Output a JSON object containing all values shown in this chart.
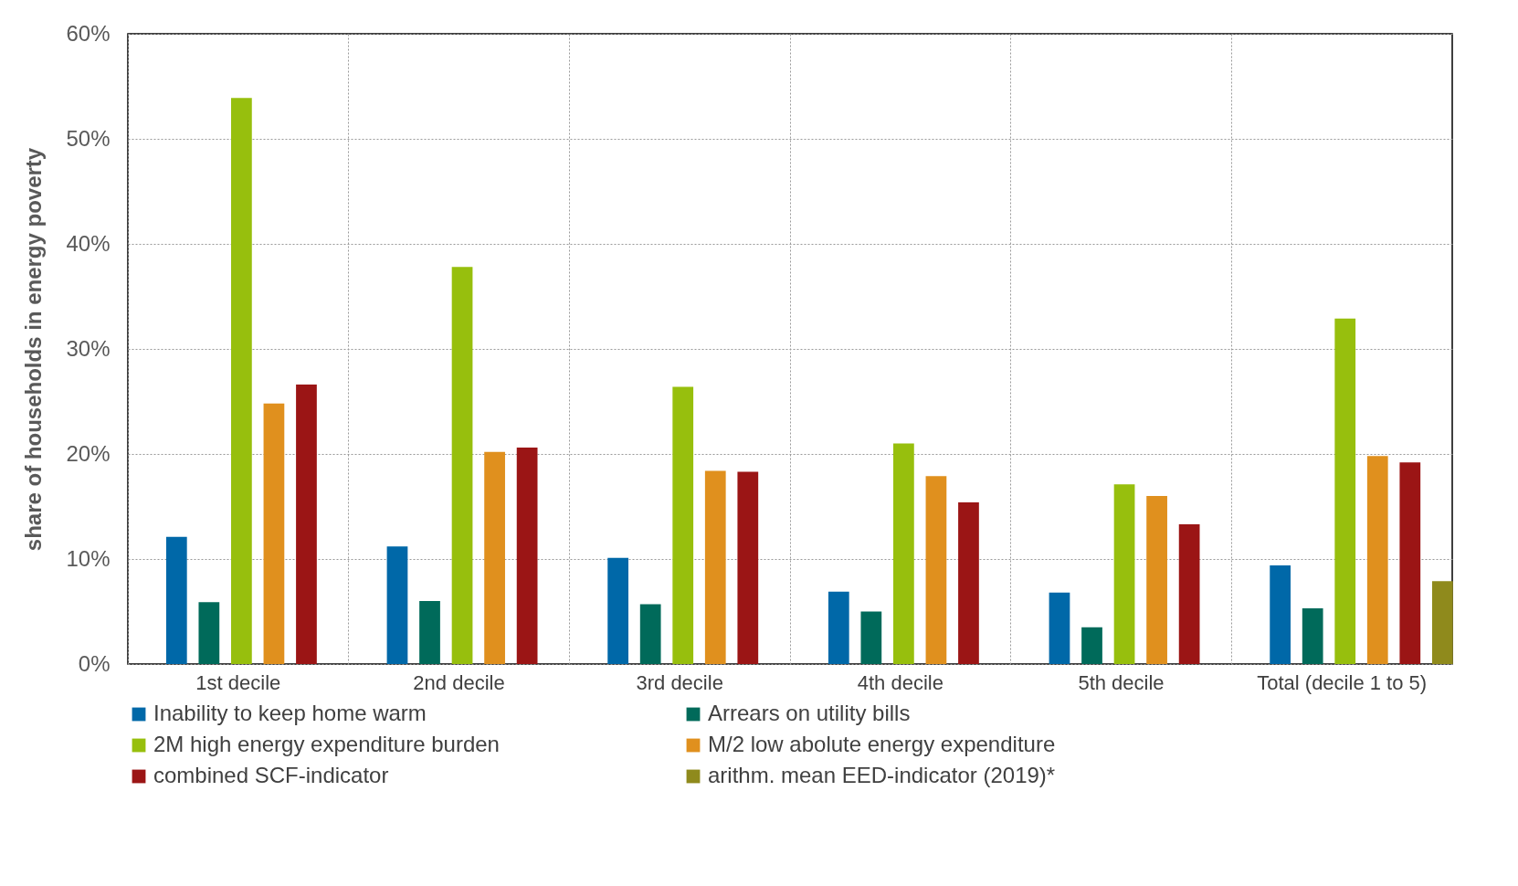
{
  "chart_data": {
    "type": "bar",
    "ylabel": "share of households in energy poverty",
    "categories": [
      "1st decile",
      "2nd decile",
      "3rd decile",
      "4th decile",
      "5th decile",
      "Total (decile 1 to 5)"
    ],
    "series": [
      {
        "name": "Inability to keep home warm",
        "color": "#0068a8",
        "values": [
          12.1,
          11.2,
          10.1,
          6.9,
          6.8,
          9.4
        ]
      },
      {
        "name": "Arrears on utility bills",
        "color": "#006a5a",
        "values": [
          5.9,
          6.0,
          5.7,
          5.0,
          3.5,
          5.3
        ]
      },
      {
        "name": "2M high energy expenditure burden",
        "color": "#97bf0d",
        "values": [
          53.9,
          37.8,
          26.4,
          21.0,
          17.1,
          32.9
        ]
      },
      {
        "name": "M/2 low abolute energy expenditure",
        "color": "#e0901e",
        "values": [
          24.8,
          20.2,
          18.4,
          17.9,
          16.0,
          19.8
        ]
      },
      {
        "name": "combined SCF-indicator",
        "color": "#9b1515",
        "values": [
          26.6,
          20.6,
          18.3,
          15.4,
          13.3,
          19.2
        ]
      },
      {
        "name": "arithm. mean EED-indicator (2019)*",
        "color": "#8f8a1c",
        "values": [
          null,
          null,
          null,
          null,
          null,
          7.9
        ]
      }
    ],
    "ylim": [
      0,
      60
    ],
    "yticks": [
      {
        "value": 0,
        "label": "0%"
      },
      {
        "value": 10,
        "label": "10%"
      },
      {
        "value": 20,
        "label": "20%"
      },
      {
        "value": 30,
        "label": "30%"
      },
      {
        "value": 40,
        "label": "40%"
      },
      {
        "value": 50,
        "label": "50%"
      },
      {
        "value": 60,
        "label": "60%"
      }
    ],
    "grid": true,
    "legend": "bottom"
  }
}
